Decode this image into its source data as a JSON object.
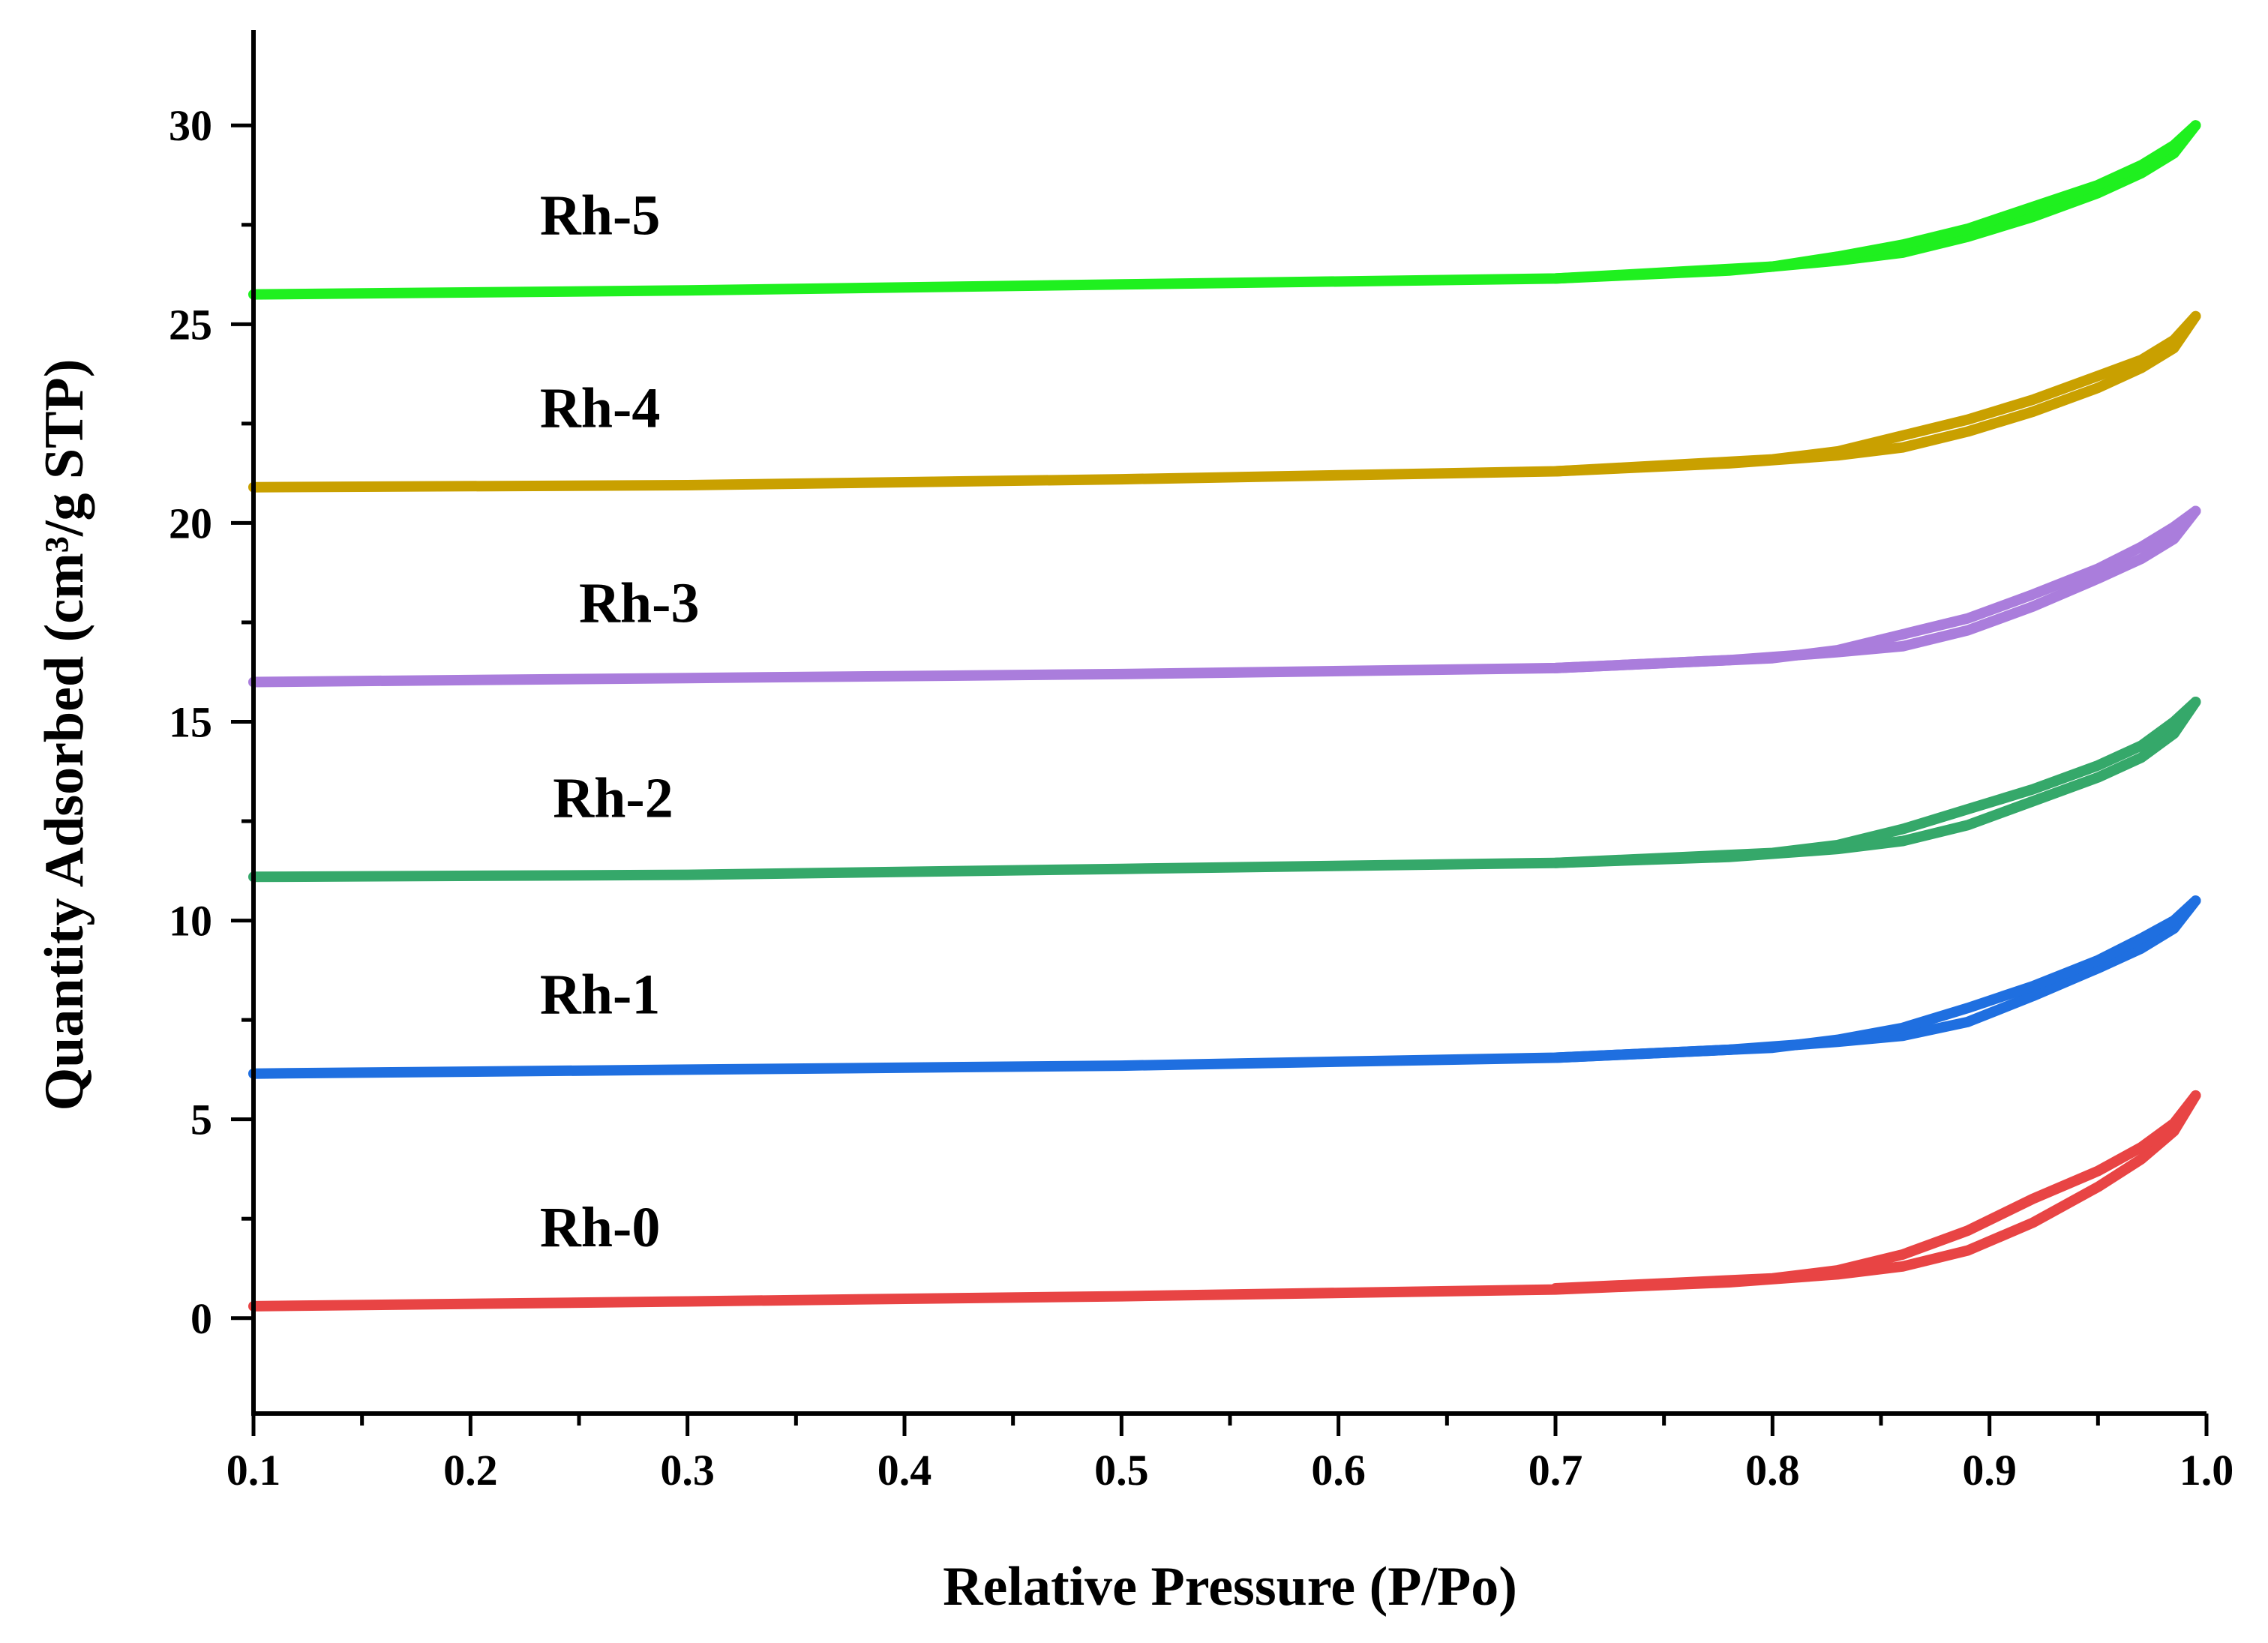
{
  "chart_data": {
    "type": "line",
    "title": "",
    "xlabel": "Relative Pressure (P/Po)",
    "ylabel": "Quantity Adsorbed (cm³/g STP)",
    "xlim": [
      0.1,
      1.0
    ],
    "ylim": [
      -2.4,
      32.4
    ],
    "xticks": [
      0.1,
      0.2,
      0.3,
      0.4,
      0.5,
      0.6,
      0.7,
      0.8,
      0.9,
      1.0
    ],
    "xtick_labels": [
      "0.1",
      "0.2",
      "0.3",
      "0.4",
      "0.5",
      "0.6",
      "0.7",
      "0.8",
      "0.9",
      "1.0"
    ],
    "yticks": [
      0,
      5,
      10,
      15,
      20,
      25,
      30
    ],
    "ytick_labels": [
      "0",
      "5",
      "10",
      "15",
      "20",
      "25",
      "30"
    ],
    "grid": false,
    "legend": "none (series labelled inline, left of curves)",
    "series": [
      {
        "name": "Rh-0",
        "color": "#e84444",
        "adsorption": [
          [
            0.1,
            0.3
          ],
          [
            0.3,
            0.42
          ],
          [
            0.5,
            0.55
          ],
          [
            0.7,
            0.72
          ],
          [
            0.78,
            0.9
          ],
          [
            0.83,
            1.1
          ],
          [
            0.86,
            1.3
          ],
          [
            0.89,
            1.7
          ],
          [
            0.92,
            2.4
          ],
          [
            0.95,
            3.3
          ],
          [
            0.97,
            4.0
          ],
          [
            0.985,
            4.7
          ],
          [
            0.995,
            5.6
          ]
        ],
        "desorption": [
          [
            0.995,
            5.6
          ],
          [
            0.985,
            4.9
          ],
          [
            0.97,
            4.3
          ],
          [
            0.95,
            3.7
          ],
          [
            0.92,
            3.0
          ],
          [
            0.89,
            2.2
          ],
          [
            0.86,
            1.6
          ],
          [
            0.83,
            1.2
          ],
          [
            0.8,
            1.0
          ],
          [
            0.7,
            0.75
          ]
        ]
      },
      {
        "name": "Rh-1",
        "color": "#1f6fe0",
        "adsorption": [
          [
            0.1,
            6.15
          ],
          [
            0.3,
            6.25
          ],
          [
            0.5,
            6.35
          ],
          [
            0.7,
            6.55
          ],
          [
            0.78,
            6.75
          ],
          [
            0.83,
            6.95
          ],
          [
            0.86,
            7.1
          ],
          [
            0.89,
            7.45
          ],
          [
            0.92,
            8.1
          ],
          [
            0.95,
            8.8
          ],
          [
            0.97,
            9.3
          ],
          [
            0.985,
            9.8
          ],
          [
            0.995,
            10.5
          ]
        ],
        "desorption": [
          [
            0.995,
            10.5
          ],
          [
            0.985,
            10.0
          ],
          [
            0.97,
            9.55
          ],
          [
            0.95,
            9.0
          ],
          [
            0.92,
            8.35
          ],
          [
            0.89,
            7.8
          ],
          [
            0.86,
            7.3
          ],
          [
            0.83,
            7.0
          ],
          [
            0.8,
            6.8
          ],
          [
            0.7,
            6.55
          ]
        ]
      },
      {
        "name": "Rh-2",
        "color": "#35a86a",
        "adsorption": [
          [
            0.1,
            11.1
          ],
          [
            0.3,
            11.15
          ],
          [
            0.5,
            11.3
          ],
          [
            0.7,
            11.45
          ],
          [
            0.78,
            11.6
          ],
          [
            0.83,
            11.8
          ],
          [
            0.86,
            12.0
          ],
          [
            0.89,
            12.4
          ],
          [
            0.92,
            13.0
          ],
          [
            0.95,
            13.6
          ],
          [
            0.97,
            14.1
          ],
          [
            0.985,
            14.7
          ],
          [
            0.995,
            15.5
          ]
        ],
        "desorption": [
          [
            0.995,
            15.5
          ],
          [
            0.985,
            15.0
          ],
          [
            0.97,
            14.4
          ],
          [
            0.95,
            13.9
          ],
          [
            0.92,
            13.3
          ],
          [
            0.89,
            12.8
          ],
          [
            0.86,
            12.3
          ],
          [
            0.83,
            11.9
          ],
          [
            0.8,
            11.7
          ],
          [
            0.7,
            11.45
          ]
        ]
      },
      {
        "name": "Rh-3",
        "color": "#aa7ddc",
        "adsorption": [
          [
            0.1,
            16.0
          ],
          [
            0.3,
            16.1
          ],
          [
            0.5,
            16.2
          ],
          [
            0.7,
            16.35
          ],
          [
            0.78,
            16.55
          ],
          [
            0.83,
            16.75
          ],
          [
            0.86,
            16.9
          ],
          [
            0.89,
            17.3
          ],
          [
            0.92,
            17.9
          ],
          [
            0.95,
            18.6
          ],
          [
            0.97,
            19.1
          ],
          [
            0.985,
            19.6
          ],
          [
            0.995,
            20.3
          ]
        ],
        "desorption": [
          [
            0.995,
            20.3
          ],
          [
            0.985,
            19.9
          ],
          [
            0.97,
            19.4
          ],
          [
            0.95,
            18.85
          ],
          [
            0.92,
            18.2
          ],
          [
            0.89,
            17.6
          ],
          [
            0.86,
            17.2
          ],
          [
            0.83,
            16.8
          ],
          [
            0.8,
            16.6
          ],
          [
            0.7,
            16.35
          ]
        ]
      },
      {
        "name": "Rh-4",
        "color": "#c9a000",
        "adsorption": [
          [
            0.1,
            20.9
          ],
          [
            0.3,
            20.95
          ],
          [
            0.5,
            21.1
          ],
          [
            0.7,
            21.3
          ],
          [
            0.78,
            21.5
          ],
          [
            0.83,
            21.7
          ],
          [
            0.86,
            21.9
          ],
          [
            0.89,
            22.3
          ],
          [
            0.92,
            22.8
          ],
          [
            0.95,
            23.4
          ],
          [
            0.97,
            23.9
          ],
          [
            0.985,
            24.4
          ],
          [
            0.995,
            25.2
          ]
        ],
        "desorption": [
          [
            0.995,
            25.2
          ],
          [
            0.985,
            24.6
          ],
          [
            0.97,
            24.1
          ],
          [
            0.95,
            23.7
          ],
          [
            0.92,
            23.1
          ],
          [
            0.89,
            22.6
          ],
          [
            0.86,
            22.2
          ],
          [
            0.83,
            21.8
          ],
          [
            0.8,
            21.6
          ],
          [
            0.7,
            21.3
          ]
        ]
      },
      {
        "name": "Rh-5",
        "color": "#1ff01f",
        "adsorption": [
          [
            0.1,
            25.75
          ],
          [
            0.3,
            25.85
          ],
          [
            0.5,
            26.0
          ],
          [
            0.7,
            26.15
          ],
          [
            0.78,
            26.35
          ],
          [
            0.83,
            26.6
          ],
          [
            0.86,
            26.8
          ],
          [
            0.89,
            27.2
          ],
          [
            0.92,
            27.7
          ],
          [
            0.95,
            28.3
          ],
          [
            0.97,
            28.8
          ],
          [
            0.985,
            29.3
          ],
          [
            0.995,
            30.0
          ]
        ],
        "desorption": [
          [
            0.995,
            30.0
          ],
          [
            0.985,
            29.5
          ],
          [
            0.97,
            29.0
          ],
          [
            0.95,
            28.5
          ],
          [
            0.92,
            27.95
          ],
          [
            0.89,
            27.4
          ],
          [
            0.86,
            27.0
          ],
          [
            0.83,
            26.7
          ],
          [
            0.8,
            26.45
          ],
          [
            0.7,
            26.15
          ]
        ]
      }
    ]
  }
}
